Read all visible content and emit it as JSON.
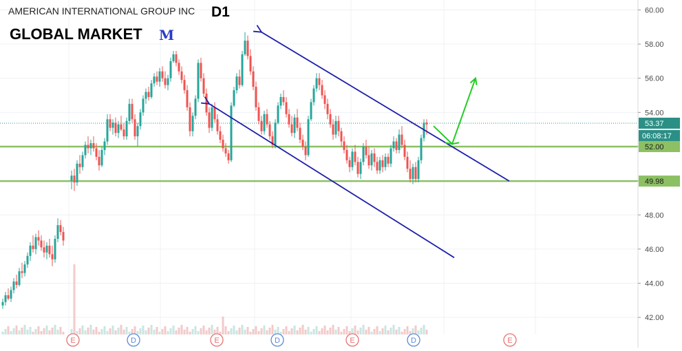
{
  "header": {
    "symbol": "AMERICAN INTERNATIONAL GROUP INC",
    "timeframe": "D1",
    "brand": "GLOBAL MARKET",
    "brand_logo": "M"
  },
  "colors": {
    "up": "#26a69a",
    "down": "#ef5350",
    "channel": "#1d1faa",
    "support": "#8cc063",
    "forecast_arrow": "#22cc22",
    "last_price_bg": "#2b8f86"
  },
  "chart_data": {
    "type": "candlestick",
    "title": "AMERICAN INTERNATIONAL GROUP INC",
    "timeframe": "D1",
    "ylim": [
      41.0,
      60.5
    ],
    "y_ticks": [
      "42.00",
      "44.00",
      "46.00",
      "48.00",
      "50.00",
      "52.00",
      "54.00",
      "56.00",
      "58.00",
      "60.00"
    ],
    "grid": true,
    "candles": [
      [
        42.7,
        43.1,
        42.5,
        42.9
      ],
      [
        42.9,
        43.5,
        42.7,
        43.3
      ],
      [
        43.3,
        43.7,
        43.0,
        43.1
      ],
      [
        43.1,
        43.8,
        42.9,
        43.6
      ],
      [
        43.6,
        44.3,
        43.4,
        44.1
      ],
      [
        44.1,
        44.5,
        43.7,
        43.9
      ],
      [
        43.9,
        44.9,
        43.8,
        44.7
      ],
      [
        44.7,
        45.2,
        44.3,
        44.6
      ],
      [
        44.6,
        45.3,
        44.4,
        45.1
      ],
      [
        45.1,
        45.8,
        44.9,
        45.6
      ],
      [
        45.6,
        46.4,
        45.3,
        46.2
      ],
      [
        46.2,
        46.8,
        45.8,
        46.0
      ],
      [
        46.0,
        46.9,
        45.7,
        46.7
      ],
      [
        46.7,
        47.1,
        46.2,
        46.5
      ],
      [
        46.5,
        46.8,
        45.9,
        46.1
      ],
      [
        46.1,
        46.5,
        45.5,
        45.8
      ],
      [
        45.8,
        46.4,
        45.4,
        46.2
      ],
      [
        46.2,
        46.6,
        45.5,
        45.7
      ],
      [
        45.7,
        46.2,
        45.0,
        45.4
      ],
      [
        45.4,
        46.8,
        45.2,
        46.6
      ],
      [
        46.6,
        47.8,
        46.4,
        47.4
      ],
      [
        47.4,
        47.7,
        46.8,
        47.0
      ],
      [
        47.0,
        47.3,
        46.2,
        46.5
      ],
      [
        50.0,
        50.6,
        49.5,
        50.3
      ],
      [
        50.3,
        50.7,
        49.4,
        49.9
      ],
      [
        49.9,
        51.2,
        49.7,
        51.0
      ],
      [
        51.0,
        51.5,
        50.4,
        50.8
      ],
      [
        50.8,
        51.7,
        50.6,
        51.5
      ],
      [
        51.5,
        52.3,
        51.3,
        52.1
      ],
      [
        52.1,
        52.6,
        51.6,
        51.9
      ],
      [
        51.9,
        52.4,
        51.5,
        52.2
      ],
      [
        52.2,
        52.6,
        51.7,
        51.9
      ],
      [
        51.9,
        52.2,
        51.2,
        51.4
      ],
      [
        51.4,
        51.8,
        50.6,
        50.9
      ],
      [
        50.9,
        52.0,
        50.8,
        51.8
      ],
      [
        51.8,
        52.5,
        51.5,
        52.3
      ],
      [
        52.3,
        53.9,
        52.1,
        53.6
      ],
      [
        53.6,
        53.9,
        52.9,
        53.1
      ],
      [
        53.1,
        53.6,
        52.7,
        53.4
      ],
      [
        53.4,
        53.7,
        52.6,
        52.8
      ],
      [
        52.8,
        53.5,
        52.5,
        53.3
      ],
      [
        53.3,
        53.8,
        52.9,
        53.0
      ],
      [
        53.0,
        53.4,
        52.4,
        52.6
      ],
      [
        52.6,
        53.7,
        52.4,
        53.5
      ],
      [
        53.5,
        54.8,
        53.3,
        54.5
      ],
      [
        54.5,
        54.8,
        53.4,
        53.6
      ],
      [
        53.6,
        53.9,
        52.4,
        52.6
      ],
      [
        52.6,
        53.4,
        52.0,
        53.2
      ],
      [
        53.2,
        54.2,
        53.0,
        54.0
      ],
      [
        54.0,
        55.0,
        53.8,
        54.8
      ],
      [
        54.8,
        55.4,
        54.5,
        55.2
      ],
      [
        55.2,
        55.5,
        54.7,
        54.9
      ],
      [
        54.9,
        55.9,
        54.8,
        55.7
      ],
      [
        55.7,
        56.3,
        55.5,
        56.1
      ],
      [
        56.1,
        56.4,
        55.6,
        55.8
      ],
      [
        55.8,
        56.6,
        55.5,
        56.4
      ],
      [
        56.4,
        56.7,
        55.8,
        56.0
      ],
      [
        56.0,
        56.4,
        55.4,
        55.6
      ],
      [
        55.6,
        56.2,
        55.3,
        56.0
      ],
      [
        56.0,
        57.2,
        55.8,
        57.0
      ],
      [
        57.0,
        57.6,
        56.9,
        57.4
      ],
      [
        57.4,
        57.6,
        56.7,
        56.9
      ],
      [
        56.9,
        57.1,
        56.2,
        56.4
      ],
      [
        56.4,
        56.7,
        55.7,
        55.9
      ],
      [
        55.9,
        56.2,
        55.1,
        55.3
      ],
      [
        55.3,
        55.6,
        54.1,
        54.3
      ],
      [
        54.3,
        54.6,
        52.6,
        52.9
      ],
      [
        52.9,
        54.0,
        52.6,
        53.8
      ],
      [
        53.8,
        55.0,
        53.6,
        54.8
      ],
      [
        54.8,
        57.1,
        54.6,
        56.9
      ],
      [
        56.9,
        57.2,
        55.8,
        56.0
      ],
      [
        56.0,
        56.3,
        54.9,
        55.1
      ],
      [
        55.1,
        55.4,
        53.8,
        54.0
      ],
      [
        54.0,
        54.3,
        52.8,
        53.1
      ],
      [
        53.1,
        54.5,
        52.9,
        54.3
      ],
      [
        54.3,
        54.6,
        53.4,
        53.6
      ],
      [
        53.6,
        53.9,
        52.7,
        52.9
      ],
      [
        52.9,
        53.2,
        52.2,
        52.4
      ],
      [
        52.4,
        52.7,
        51.7,
        51.9
      ],
      [
        51.9,
        52.2,
        51.4,
        51.6
      ],
      [
        51.6,
        51.8,
        51.0,
        51.2
      ],
      [
        51.2,
        54.6,
        51.1,
        54.4
      ],
      [
        54.4,
        55.5,
        54.3,
        55.3
      ],
      [
        55.3,
        56.3,
        55.1,
        56.1
      ],
      [
        56.1,
        56.5,
        55.4,
        55.6
      ],
      [
        55.6,
        57.6,
        55.5,
        57.4
      ],
      [
        57.4,
        58.7,
        57.3,
        58.2
      ],
      [
        58.2,
        58.5,
        57.1,
        57.3
      ],
      [
        57.3,
        57.7,
        56.2,
        56.4
      ],
      [
        56.4,
        56.7,
        55.3,
        55.5
      ],
      [
        55.5,
        55.8,
        54.1,
        54.3
      ],
      [
        54.3,
        54.6,
        53.3,
        53.5
      ],
      [
        53.5,
        53.8,
        52.7,
        52.9
      ],
      [
        52.9,
        54.1,
        52.7,
        53.9
      ],
      [
        53.9,
        54.2,
        53.1,
        53.3
      ],
      [
        53.3,
        53.5,
        52.4,
        52.6
      ],
      [
        52.6,
        52.9,
        51.9,
        52.1
      ],
      [
        52.1,
        53.6,
        51.9,
        53.4
      ],
      [
        53.4,
        54.6,
        53.3,
        54.4
      ],
      [
        54.4,
        55.1,
        54.2,
        54.9
      ],
      [
        54.9,
        55.3,
        54.4,
        54.6
      ],
      [
        54.6,
        54.9,
        53.7,
        53.9
      ],
      [
        53.9,
        54.2,
        53.1,
        53.3
      ],
      [
        53.3,
        53.8,
        52.6,
        52.8
      ],
      [
        52.8,
        53.9,
        52.5,
        53.7
      ],
      [
        53.7,
        54.2,
        52.9,
        53.1
      ],
      [
        53.1,
        53.4,
        52.2,
        52.4
      ],
      [
        52.4,
        52.7,
        51.8,
        52.0
      ],
      [
        52.0,
        52.3,
        51.2,
        51.5
      ],
      [
        51.5,
        53.8,
        51.4,
        53.6
      ],
      [
        53.6,
        54.8,
        53.5,
        54.6
      ],
      [
        54.6,
        55.6,
        54.4,
        55.4
      ],
      [
        55.4,
        56.3,
        55.2,
        56.0
      ],
      [
        56.0,
        56.3,
        55.3,
        55.6
      ],
      [
        55.6,
        55.9,
        54.8,
        55.0
      ],
      [
        55.0,
        55.3,
        54.2,
        54.5
      ],
      [
        54.5,
        54.8,
        53.6,
        53.9
      ],
      [
        53.9,
        54.2,
        53.1,
        53.3
      ],
      [
        53.3,
        53.6,
        52.4,
        52.7
      ],
      [
        52.7,
        53.8,
        52.5,
        53.5
      ],
      [
        53.5,
        53.8,
        52.6,
        52.9
      ],
      [
        52.9,
        53.1,
        52.0,
        52.3
      ],
      [
        52.3,
        52.6,
        51.6,
        51.8
      ],
      [
        51.8,
        52.1,
        51.0,
        51.2
      ],
      [
        51.2,
        51.4,
        50.5,
        50.8
      ],
      [
        50.8,
        51.9,
        50.6,
        51.7
      ],
      [
        51.7,
        52.1,
        50.9,
        51.1
      ],
      [
        51.1,
        51.4,
        50.2,
        50.4
      ],
      [
        50.4,
        51.3,
        50.1,
        51.1
      ],
      [
        51.1,
        52.2,
        50.9,
        52.0
      ],
      [
        52.0,
        52.4,
        51.3,
        51.5
      ],
      [
        51.5,
        52.0,
        50.7,
        50.9
      ],
      [
        50.9,
        51.8,
        50.6,
        51.6
      ],
      [
        51.6,
        51.9,
        50.8,
        51.1
      ],
      [
        51.1,
        51.4,
        50.4,
        50.6
      ],
      [
        50.6,
        51.4,
        50.4,
        51.2
      ],
      [
        51.2,
        51.5,
        50.5,
        50.8
      ],
      [
        50.8,
        51.6,
        50.6,
        51.4
      ],
      [
        51.4,
        51.6,
        50.8,
        51.0
      ],
      [
        51.0,
        52.1,
        50.8,
        51.9
      ],
      [
        51.9,
        52.6,
        51.7,
        52.3
      ],
      [
        52.3,
        52.5,
        51.6,
        51.8
      ],
      [
        51.8,
        53.0,
        51.6,
        52.7
      ],
      [
        52.7,
        53.2,
        51.9,
        52.1
      ],
      [
        52.1,
        52.4,
        51.2,
        51.4
      ],
      [
        51.4,
        51.7,
        50.5,
        50.7
      ],
      [
        50.7,
        51.2,
        49.9,
        50.1
      ],
      [
        50.1,
        51.0,
        49.8,
        50.8
      ],
      [
        50.8,
        51.1,
        49.9,
        50.1
      ],
      [
        50.1,
        51.4,
        49.9,
        51.2
      ],
      [
        51.2,
        52.7,
        51.0,
        52.5
      ],
      [
        52.5,
        53.6,
        52.3,
        53.4
      ],
      [
        53.4,
        53.6,
        52.7,
        53.3
      ]
    ],
    "support_levels": [
      52.0,
      49.98
    ],
    "last_price": "53.37",
    "countdown": "06:08:17",
    "event_markers": [
      "E",
      "D",
      "E",
      "D",
      "E",
      "D",
      "E"
    ],
    "drawings": {
      "channel_upper": {
        "from_index": 92,
        "from_price": 58.7,
        "to_index": 182,
        "to_price": 49.98
      },
      "channel_lower": {
        "from_index": 73,
        "from_price": 54.5,
        "to_index": 162,
        "to_price": 45.5
      },
      "forecast_arrow": [
        "pullback to the channel line near 52.00",
        "rise toward 56.00"
      ]
    }
  }
}
